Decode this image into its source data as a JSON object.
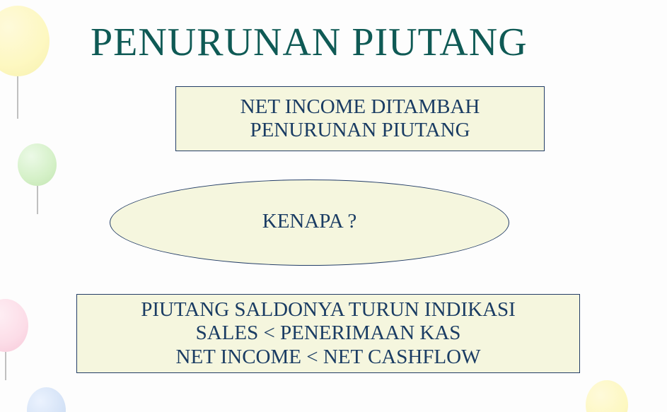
{
  "colors": {
    "title": "#0f5a55",
    "body_text": "#1a3c63",
    "shape_fill": "#f5f6de",
    "shape_border": "#233d66"
  },
  "title": "PENURUNAN  PIUTANG",
  "box1": {
    "line1": "NET INCOME DITAMBAH",
    "line2": "PENURUNAN PIUTANG"
  },
  "ellipse": {
    "text": "KENAPA  ?"
  },
  "box3": {
    "line1": "PIUTANG SALDONYA TURUN  INDIKASI",
    "line2": "SALES <   PENERIMAAN  KAS",
    "line3": "NET INCOME < NET CASHFLOW"
  }
}
